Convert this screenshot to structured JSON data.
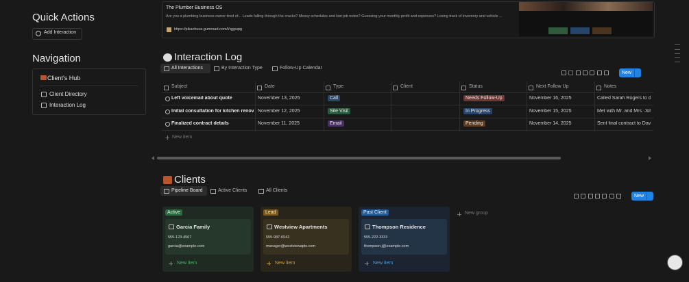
{
  "sidebar": {
    "quick_actions_title": "Quick Actions",
    "add_interaction": "Add Interaction",
    "navigation_title": "Navigation",
    "hub_title": "Client's Hub",
    "links": [
      "Client Directory",
      "Interaction Log"
    ]
  },
  "bookmark": {
    "title": "The Plumber Business OS",
    "description": "Are you a plumbing business owner tired of... Leads falling through the cracks? Messy schedules and lost job notes? Guessing your monthly profit and expenses? Losing track of inventory and vehicle ...",
    "url": "https://pikachuus.gumroad.com/l/qgpupg"
  },
  "interaction_log": {
    "title": "Interaction Log",
    "tabs": [
      "All Interactions",
      "By Interaction Type",
      "Follow-Up Calendar"
    ],
    "new_button": "New",
    "columns": [
      "Subject",
      "Date",
      "Type",
      "Client",
      "Status",
      "Next Follow Up",
      "Notes"
    ],
    "rows": [
      [
        "Left voicemail about quote",
        "November 13, 2025",
        "Call",
        "",
        "Needs Follow-Up",
        "November 16, 2025",
        "Called Sarah Rogers to disc"
      ],
      [
        "Initial consultation for kitchen renovati",
        "November 12, 2025",
        "Site Visit",
        "",
        "In Progress",
        "November 15, 2025",
        "Met with Mr. and Mrs. John"
      ],
      [
        "Finalized contract details",
        "November 11, 2025",
        "Email",
        "",
        "Pending",
        "November 14, 2025",
        "Sent final contract to David"
      ]
    ],
    "new_item": "New item"
  },
  "clients": {
    "title": "Clients",
    "tabs": [
      "Pipeline Board",
      "Active Clients",
      "All Clients"
    ],
    "new_button": "New",
    "new_group": "New group",
    "groups": [
      {
        "label": "Active",
        "name": "Garcia Family",
        "phone": "555-123-4567",
        "email": "garcia@example.com",
        "new_item": "New item"
      },
      {
        "label": "Lead",
        "name": "Westview Apartments",
        "phone": "555-987-6543",
        "email": "manager@westviewapts.com",
        "new_item": "New item"
      },
      {
        "label": "Past Client",
        "name": "Thompson Residence",
        "phone": "555-222-3333",
        "email": "thompson.j@example.com",
        "new_item": "New item"
      }
    ]
  }
}
